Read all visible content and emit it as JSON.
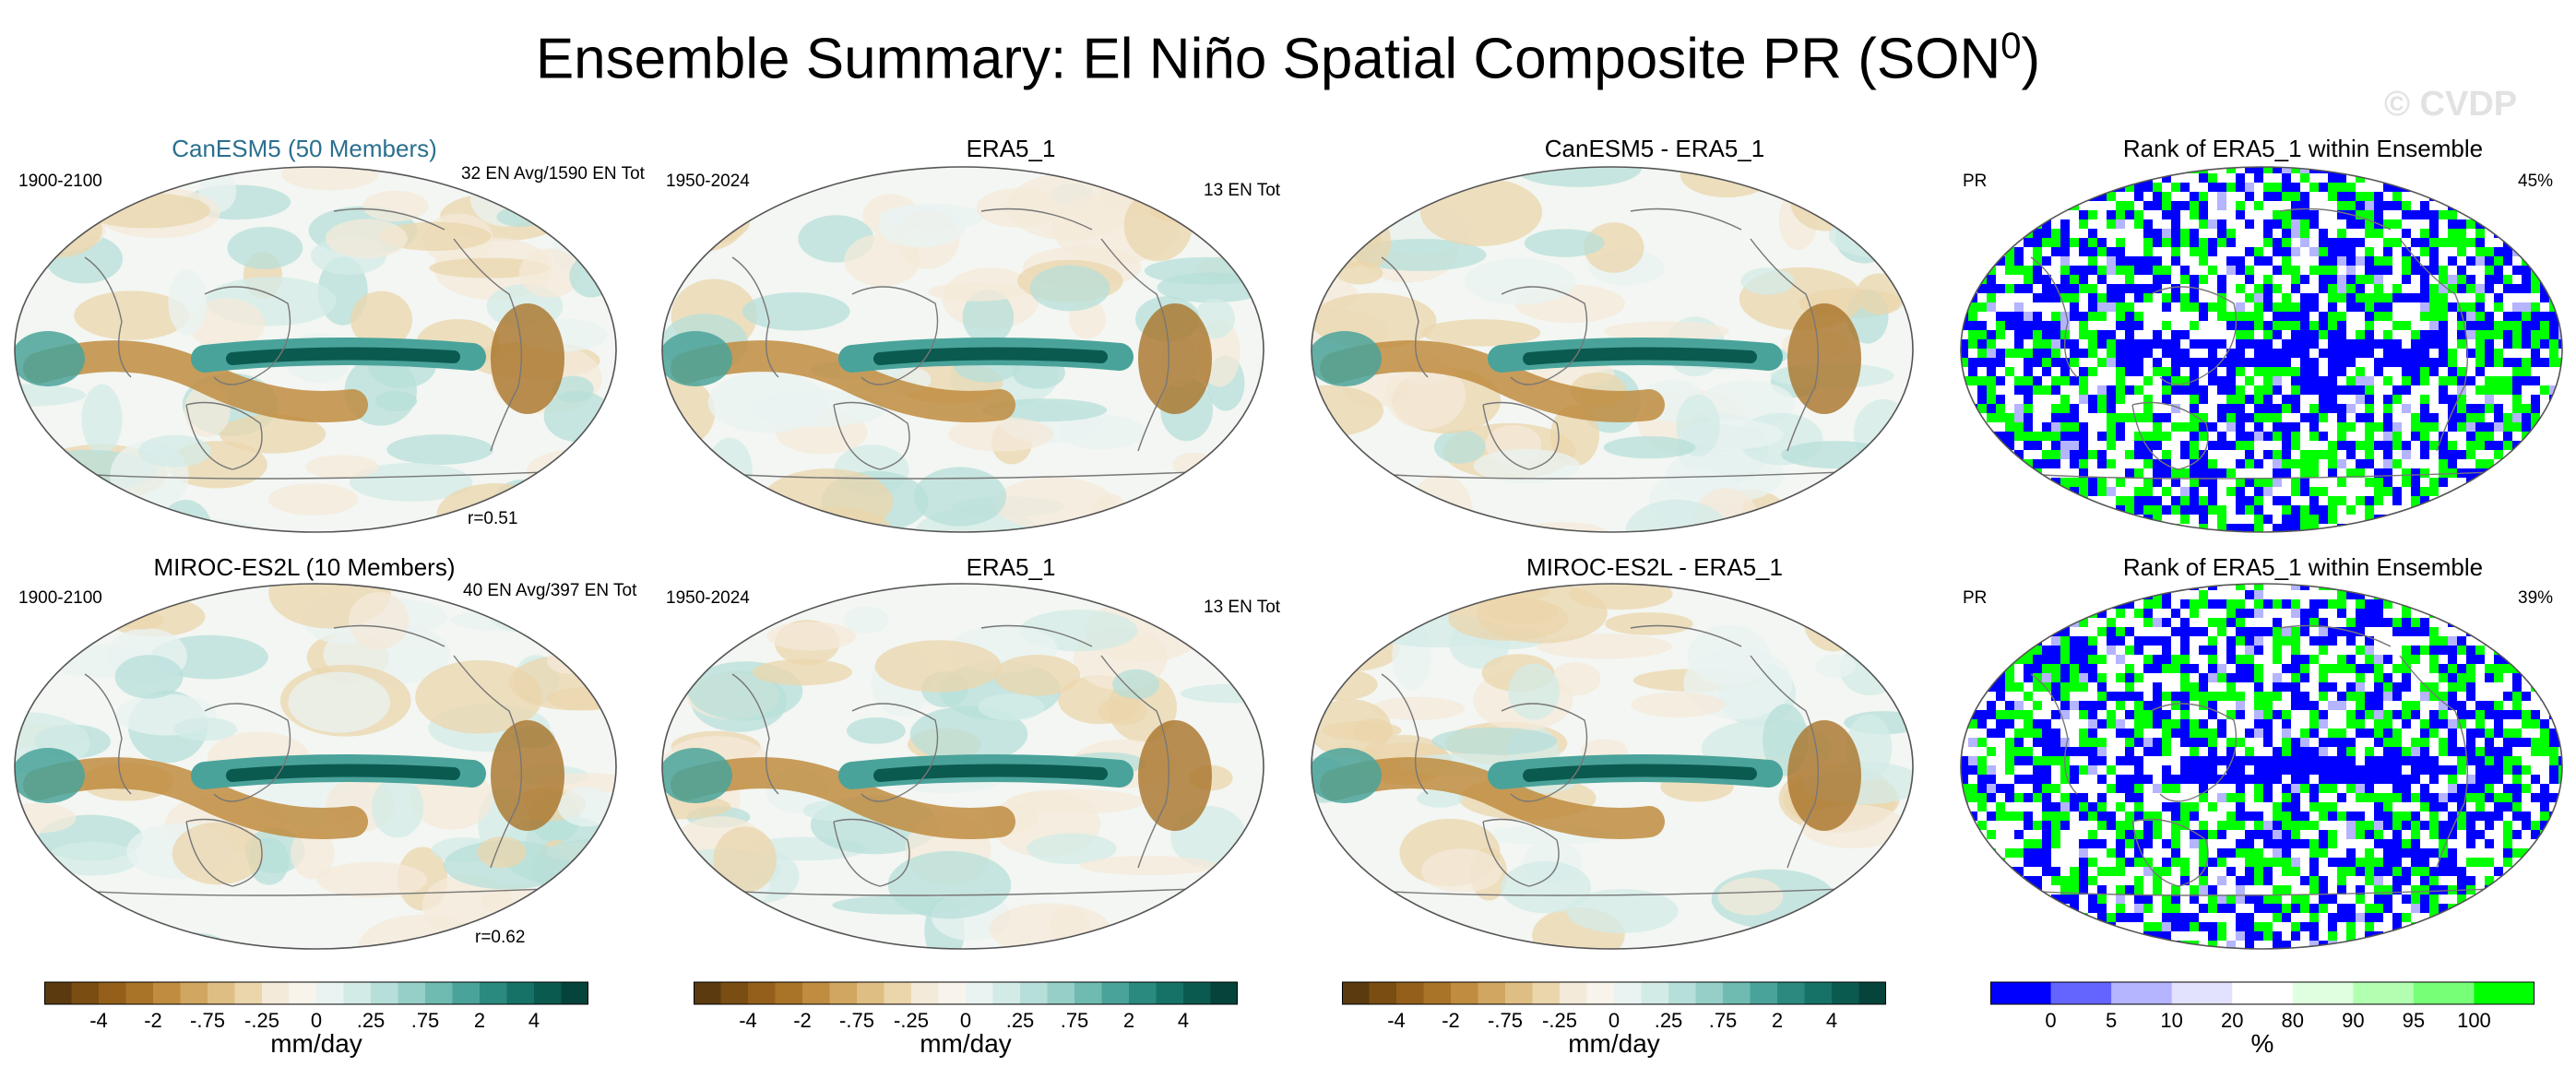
{
  "title": {
    "main": "Ensemble Summary: El Niño Spatial Composite PR (SON",
    "sup": "0",
    "close": ")"
  },
  "watermark": "© CVDP",
  "rows": [
    {
      "model": {
        "title": "CanESM5 (50 Members)",
        "title_color": "#2b6f8e",
        "left": "1900-2100",
        "right": "32 EN Avg/1590 EN Tot",
        "r": "r=0.51"
      },
      "obs": {
        "title": "ERA5_1",
        "left": "1950-2024",
        "right": "13 EN Tot"
      },
      "diff": {
        "title": "CanESM5 - ERA5_1"
      },
      "rank": {
        "title": "Rank of ERA5_1 within Ensemble",
        "left": "PR",
        "right": "45%"
      }
    },
    {
      "model": {
        "title": "MIROC-ES2L (10 Members)",
        "title_color": "#6b9a6b",
        "left": "1900-2100",
        "right": "40 EN Avg/397 EN Tot",
        "r": "r=0.62"
      },
      "obs": {
        "title": "ERA5_1",
        "left": "1950-2024",
        "right": "13 EN Tot"
      },
      "diff": {
        "title": "MIROC-ES2L - ERA5_1"
      },
      "rank": {
        "title": "Rank of ERA5_1 within Ensemble",
        "left": "PR",
        "right": "39%"
      }
    }
  ],
  "colorbars": {
    "pr": {
      "unit": "mm/day",
      "labels": [
        "-4",
        "-2",
        "-.75",
        "-.25",
        "0",
        ".25",
        ".75",
        "2",
        "4"
      ],
      "colors": [
        "#5a3a0e",
        "#7a4d12",
        "#935f1a",
        "#a97328",
        "#bf8c40",
        "#d1a660",
        "#dfbe84",
        "#ebd6ac",
        "#f4eada",
        "#f8f4ec",
        "#e9f3f1",
        "#d3ebe7",
        "#b7dfd9",
        "#95cfc7",
        "#6fbbb1",
        "#4aa39a",
        "#2a8a80",
        "#167267",
        "#0b5a50",
        "#05433b"
      ]
    },
    "rank": {
      "unit": "%",
      "labels": [
        "0",
        "5",
        "10",
        "20",
        "80",
        "90",
        "95",
        "100"
      ],
      "colors": [
        "#0000ff",
        "#6464ff",
        "#b4b4ff",
        "#e2e2ff",
        "#ffffff",
        "#e0ffe0",
        "#b2ffb2",
        "#78ff78",
        "#00ff00"
      ]
    }
  }
}
